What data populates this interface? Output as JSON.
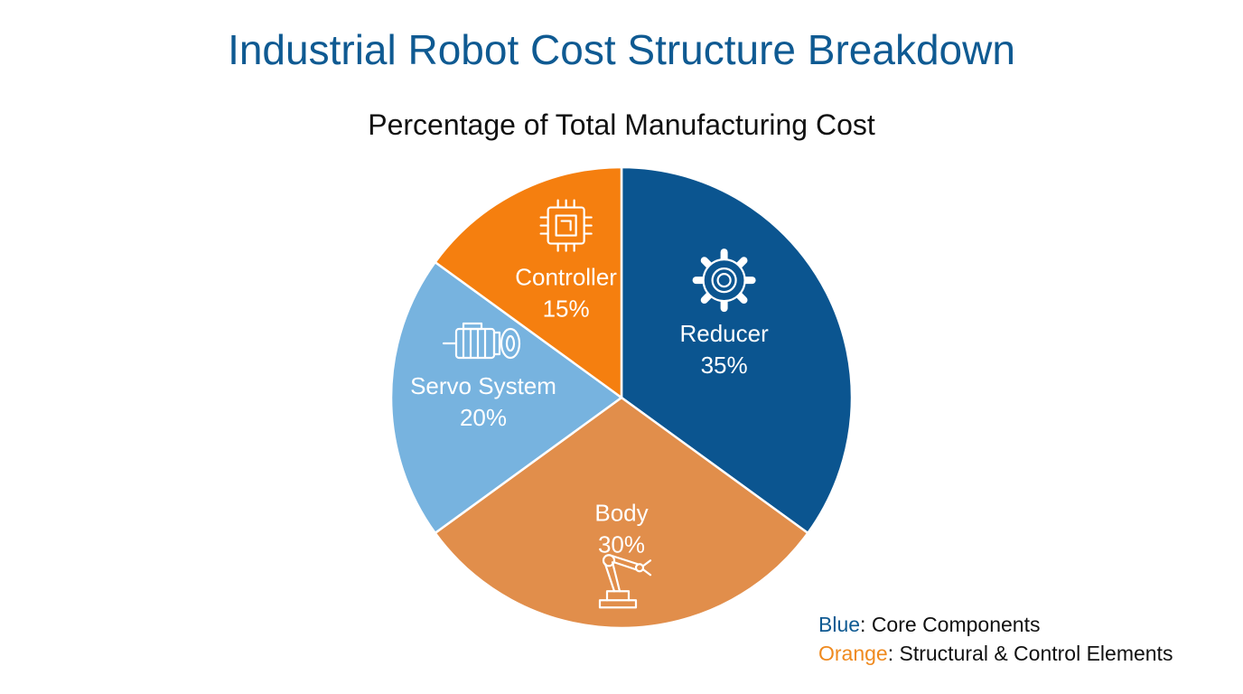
{
  "chart_data": {
    "type": "pie",
    "title": "Industrial Robot Cost Structure Breakdown",
    "subtitle": "Percentage of Total Manufacturing Cost",
    "slices": [
      {
        "label": "Reducer",
        "value": 35,
        "value_label": "35%",
        "color": "#0b5590",
        "icon": "gear-icon"
      },
      {
        "label": "Body",
        "value": 30,
        "value_label": "30%",
        "color": "#e18e4b",
        "icon": "robot-arm-icon"
      },
      {
        "label": "Servo System",
        "value": 20,
        "value_label": "20%",
        "color": "#77b3df",
        "icon": "servo-motor-icon"
      },
      {
        "label": "Controller",
        "value": 15,
        "value_label": "15%",
        "color": "#f57f0f",
        "icon": "chip-icon"
      }
    ],
    "legend": [
      {
        "key": "Blue",
        "text": ": Core Components",
        "color": "#0f5a92"
      },
      {
        "key": "Orange",
        "text": ": Structural & Control Elements",
        "color": "#ef8a1f"
      }
    ],
    "start_angle": "12 o'clock",
    "direction": "clockwise",
    "legend_position": "bottom-right"
  }
}
